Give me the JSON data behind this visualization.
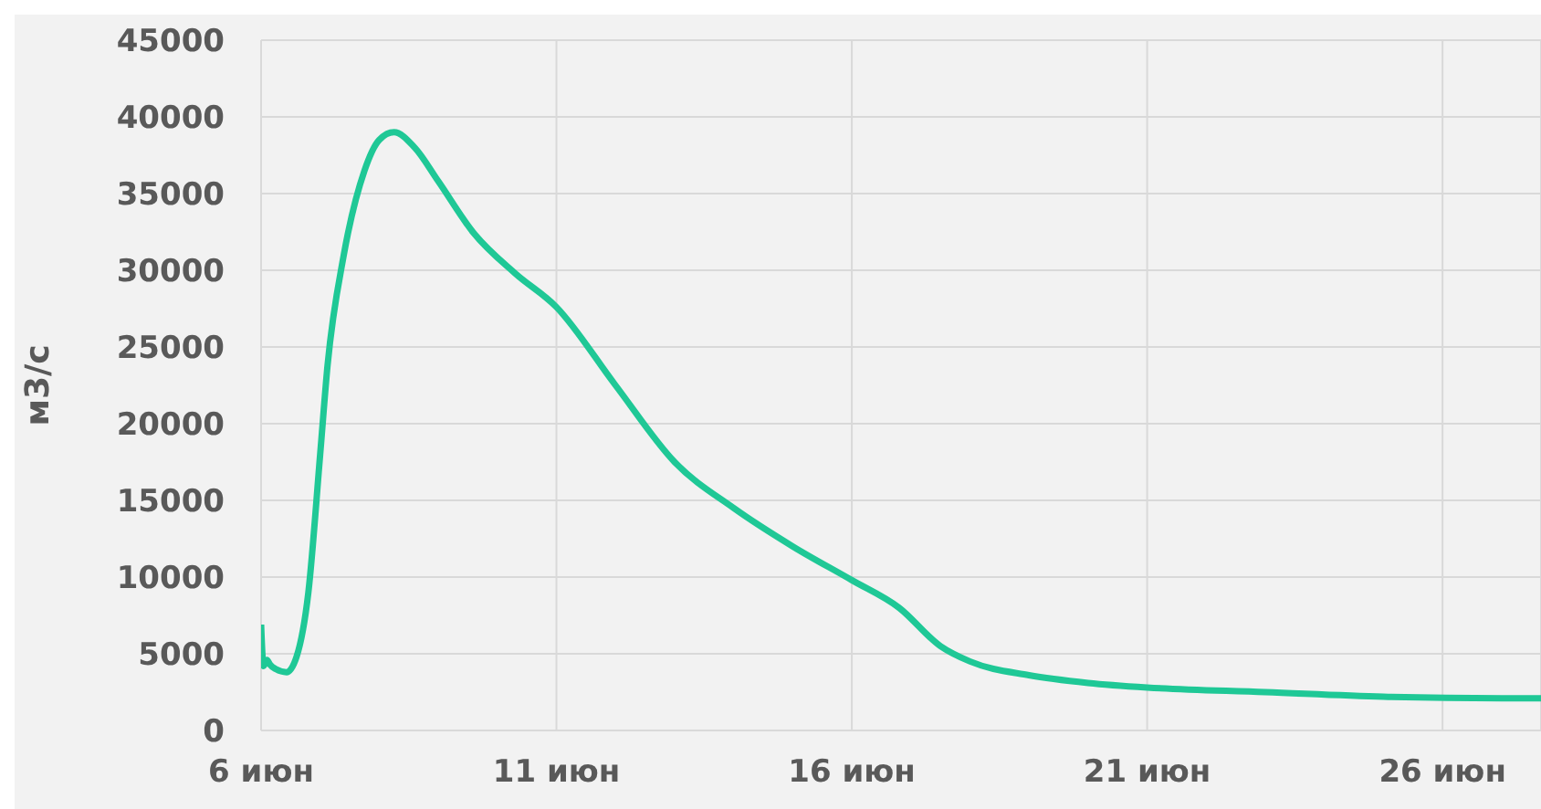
{
  "chart_data": {
    "type": "line",
    "ylabel": "м3/с",
    "x": [
      "--06-06T00:00",
      "--06-06T01:00",
      "--06-06T02:24",
      "--06-06T03:36",
      "--06-06T06:00",
      "--06-06T10:20",
      "--06-06T14:24",
      "--06-06T19:12",
      "--06-07T00:00",
      "--06-07T03:00",
      "--06-07T09:36",
      "--06-07T18:00",
      "--06-08T00:00",
      "--06-08T06:00",
      "--06-08T14:24",
      "--06-09T00:00",
      "--06-09T14:00",
      "--06-10T07:12",
      "--06-11T00:00",
      "--06-12T00:00",
      "--06-13T00:00",
      "--06-14T00:00",
      "--06-15T00:00",
      "--06-16T00:00",
      "--06-16T19:12",
      "--06-17T12:00",
      "--06-18T00:00",
      "--06-19T00:00",
      "--06-20T00:00",
      "--06-21T00:00",
      "--06-23T00:00",
      "--06-25T00:00",
      "--06-27T00:00",
      "--06-27T16:00"
    ],
    "series": [
      {
        "color": "#1fc896",
        "values": [
          6900,
          4200,
          4600,
          4300,
          4000,
          3800,
          4800,
          9000,
          18000,
          23800,
          31000,
          36500,
          38500,
          39000,
          38000,
          35800,
          32500,
          29800,
          27600,
          22500,
          17500,
          14500,
          12000,
          9800,
          8000,
          5500,
          4500,
          3600,
          3100,
          2800,
          2500,
          2200,
          2100,
          2100
        ]
      }
    ],
    "xlim": [
      "--06-06T00:00",
      "--06-27T16:00"
    ],
    "xticks": [
      {
        "value": "--06-06",
        "label": "6 июн"
      },
      {
        "value": "--06-11",
        "label": "11 июн"
      },
      {
        "value": "--06-16",
        "label": "16 июн"
      },
      {
        "value": "--06-21",
        "label": "21 июн"
      },
      {
        "value": "--06-26",
        "label": "26 июн"
      }
    ],
    "ylim": [
      0,
      45000
    ],
    "yticks": [
      0,
      5000,
      10000,
      15000,
      20000,
      25000,
      30000,
      35000,
      40000,
      45000
    ],
    "grid": true,
    "legend": false,
    "marker": "none",
    "line_style": "solid"
  }
}
